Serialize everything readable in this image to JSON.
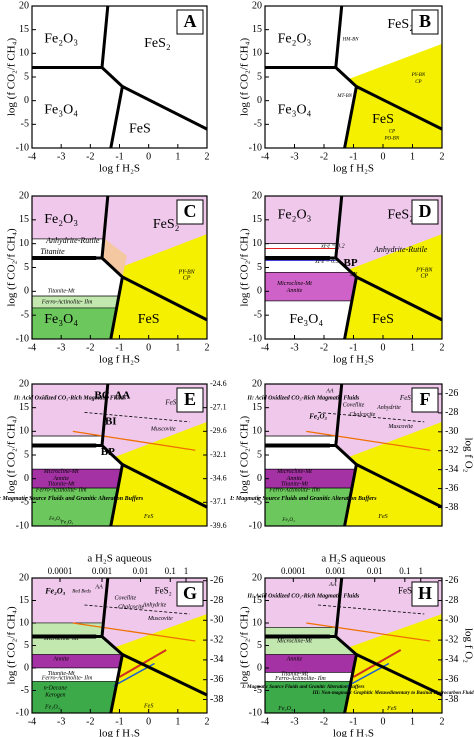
{
  "panels": [
    {
      "letter": "A",
      "ylabel": "log (f CO₂/f CH₄)",
      "xlabel": "log f H₂S",
      "xticks": [
        -4,
        -3,
        -2,
        -1,
        0,
        1,
        2
      ],
      "yticks": [
        20,
        15,
        10,
        5,
        0,
        -5,
        -10
      ],
      "labels": [
        "Fe₂O₃",
        "FeS₂",
        "Fe₃O₄",
        "FeS"
      ]
    },
    {
      "letter": "B",
      "ylabel": "log (f CO₂/f CH₄)",
      "xlabel": "log f H₂S",
      "xticks": [
        -4,
        -3,
        -2,
        -1,
        0,
        1,
        2
      ],
      "yticks": [
        20,
        15,
        10,
        5,
        0,
        -5,
        -10
      ],
      "labels": [
        "Fe₂O₃",
        "FeS₂",
        "Fe₃O₄",
        "FeS",
        "HM-BN",
        "MT-BN",
        "PY-BN",
        "CP",
        "CP",
        "PO-BN"
      ]
    },
    {
      "letter": "C",
      "ylabel": "log (f CO₂/f CH₄)",
      "xlabel": "log f H₂S",
      "xticks": [
        -4,
        -3,
        -2,
        -1,
        0,
        1,
        2
      ],
      "yticks": [
        20,
        15,
        10,
        5,
        0,
        -5,
        -10
      ],
      "labels": [
        "Fe₂O₃",
        "FeS₂",
        "Fe₃O₄",
        "FeS",
        "Anhydrite-Rutile",
        "Titanite",
        "PY-BN",
        "CP",
        "Titanite-Mt",
        "Ferro-Actinolite- Ilm"
      ]
    },
    {
      "letter": "D",
      "ylabel": "log (f CO₂/f CH₄)",
      "xlabel": "log f H₂S",
      "xticks": [
        -4,
        -3,
        -2,
        -1,
        0,
        1,
        2
      ],
      "yticks": [
        20,
        15,
        10,
        5,
        0,
        -5,
        -10
      ],
      "labels": [
        "Fe₂O₃",
        "FeS₂",
        "Fe₃O₄",
        "FeS",
        "xFe = 0.2",
        "xFe = 0.5",
        "BP",
        "SN",
        "Anhydrite-Rutile",
        "PY-BN",
        "CP",
        "Microcline-Mt",
        "Annite"
      ]
    },
    {
      "letter": "E",
      "ylabel": "log (f CO₂/f CH₄)",
      "yticks": [
        20,
        15,
        10,
        5,
        0,
        -5,
        -10
      ],
      "right_ticks": [
        -24.6,
        -27.1,
        -29.6,
        -32.1,
        -34.6,
        -37.1,
        -39.6
      ],
      "labels": [
        "BC",
        "AA",
        "BI",
        "BP",
        "II: Acid Oxidized CO₂-Rich Magmatic Fluids",
        "I: Magmatic Source Fluids and Granitic Alteration Buffers",
        "Microcline-Mt",
        "Annite",
        "Titanite-Mt",
        "Ferro-Actinolite- Ilm",
        "FeS₂",
        "FeS",
        "Fe₂O₃",
        "Fe₃O₄",
        "Muscovite"
      ]
    },
    {
      "letter": "F",
      "ylabel": "log (f CO₂/f CH₄)",
      "yticks": [
        20,
        15,
        10,
        5,
        0,
        -5,
        -10
      ],
      "right_ticks": [
        -26,
        -28,
        -30,
        -32,
        -34,
        -36,
        -38
      ],
      "right_label": "log f O₂",
      "labels": [
        "AA",
        "Covellite",
        "Chalcocite",
        "Anhydrite",
        "Muscovite",
        "II: Acid Oxidized CO₂-Rich Magmatic Fluids",
        "I: Magmatic Source Fluids and Granitic Alteration Buffers",
        "Microcline-Mt",
        "Annite",
        "Titanite-Mt",
        "Ferro-Actinolite- Ilm",
        "Fe₂O₃",
        "FeS₂",
        "FeS",
        "Fe₃O₄"
      ]
    },
    {
      "letter": "G",
      "ylabel": "log (f CO₂/f CH₄)",
      "xlabel": "log f H₂S",
      "xticks": [
        -4,
        -3,
        -2,
        -1,
        0,
        1,
        2
      ],
      "yticks": [
        20,
        15,
        10,
        5,
        0,
        -5,
        -10
      ],
      "right_ticks": [
        -26,
        -28,
        -30,
        -32,
        -34,
        -36,
        -38
      ],
      "top_label": "a H₂S aqueous",
      "top_ticks": [
        0.0001,
        0.001,
        0.01,
        0.1,
        1
      ],
      "labels": [
        "Fe₂O₃",
        "FeS₂",
        "Red Beds",
        "AA",
        "Covellite",
        "Chalcocite",
        "Anhydrite",
        "Muscovite",
        "Microcline-Mt",
        "Annite",
        "Titanite-Mt",
        "Ferro-Actinolite- Ilm",
        "n-Decane",
        "Kerogen",
        "FeS",
        "Fe₃O₄"
      ]
    },
    {
      "letter": "H",
      "ylabel": "log (f CO₂/f CH₄)",
      "xlabel": "log f H₂S",
      "xticks": [
        -4,
        -3,
        -2,
        -1,
        0,
        1,
        2
      ],
      "yticks": [
        20,
        15,
        10,
        5,
        0,
        -5,
        -10
      ],
      "right_ticks": [
        -26,
        -28,
        -30,
        -32,
        -34,
        -36,
        -38
      ],
      "right_label": "log f O₂",
      "top_label": "a H₂S aqueous",
      "top_ticks": [
        0.0001,
        0.001,
        0.01,
        0.1,
        1
      ],
      "labels": [
        "II: Acid Oxidized CO₂-Rich Magmatic Fluids",
        "I: Magmatic Source Fluids and Granitic Alteration Buffers",
        "III: Non-magmatic Graphitic Metasedimentary to Basinal Hydrocarbon Fluid Spectrum",
        "FeS₂",
        "FeS",
        "Fe₃O₄",
        "Microcline-Mt",
        "Annite",
        "Titanite-Mt",
        "Ferro-Actinolite- Ilm",
        "AA"
      ]
    }
  ]
}
